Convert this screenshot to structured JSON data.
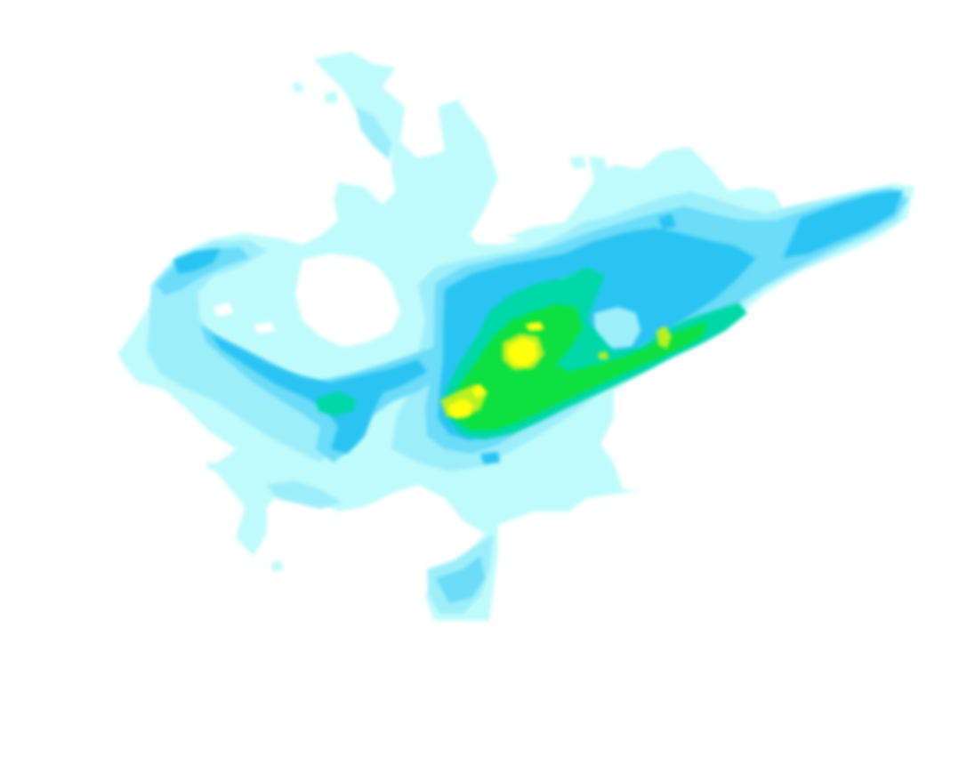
{
  "map": {
    "kind": "intensity-overlay",
    "background": "#ffffff",
    "palette": {
      "level_1": "#c0fbfb",
      "level_2": "#9deefb",
      "level_3": "#6cdcf8",
      "level_4": "#2bc4f2",
      "level_5": "#00d8a8",
      "level_6": "#10e040",
      "level_7": "#b8f020",
      "level_8": "#ffff10"
    }
  }
}
